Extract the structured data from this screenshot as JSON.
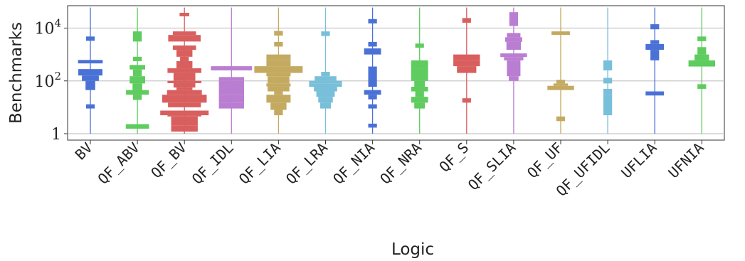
{
  "chart_data": {
    "type": "bar",
    "subtype": "histogram-violin (log-binned distribution per category)",
    "xlabel": "Logic",
    "ylabel": "Benchmarks",
    "yscale": "log",
    "ylim": [
      0.8,
      60000
    ],
    "yticks": [
      {
        "value": 1,
        "base": "1",
        "exp": ""
      },
      {
        "value": 100,
        "base": "10",
        "exp": "2"
      },
      {
        "value": 10000,
        "base": "10",
        "exp": "4"
      }
    ],
    "grid": "horizontal",
    "legend": "none",
    "categories": [
      "BV",
      "QF_ABV",
      "QF_BV",
      "QF_IDL",
      "QF_LIA",
      "QF_LRA",
      "QF_NIA",
      "QF_NRA",
      "QF_S",
      "QF_SLIA",
      "QF_UF",
      "QF_UFIDL",
      "UFLIA",
      "UFNIA"
    ],
    "series": [
      {
        "category": "BV",
        "color": "#4a72d6",
        "range": [
          1,
          60000
        ],
        "bins": [
          [
            3300,
            4800,
            0.18
          ],
          [
            460,
            620,
            0.51
          ],
          [
            160,
            280,
            0.5
          ],
          [
            100,
            160,
            0.35
          ],
          [
            45,
            100,
            0.2
          ],
          [
            9,
            13,
            0.18
          ]
        ]
      },
      {
        "category": "QF_ABV",
        "color": "#5ecc5e",
        "range": [
          1,
          60000
        ],
        "bins": [
          [
            4600,
            7500,
            0.18
          ],
          [
            3100,
            4600,
            0.18
          ],
          [
            560,
            820,
            0.18
          ],
          [
            270,
            400,
            0.32
          ],
          [
            150,
            270,
            0.18
          ],
          [
            80,
            150,
            0.32
          ],
          [
            45,
            80,
            0.2
          ],
          [
            30,
            45,
            0.47
          ],
          [
            19,
            30,
            0.18
          ],
          [
            1.55,
            2.3,
            0.48
          ]
        ]
      },
      {
        "category": "QF_BV",
        "color": "#d95f5f",
        "range": [
          1,
          60000
        ],
        "bins": [
          [
            28000,
            38000,
            0.2
          ],
          [
            5500,
            7500,
            0.48
          ],
          [
            3100,
            5500,
            0.67
          ],
          [
            1500,
            2200,
            0.48
          ],
          [
            820,
            1500,
            0.33
          ],
          [
            560,
            820,
            0.18
          ],
          [
            300,
            560,
            0.33
          ],
          [
            200,
            300,
            0.7
          ],
          [
            100,
            200,
            0.45
          ],
          [
            82,
            100,
            0.7
          ],
          [
            56,
            82,
            0.45
          ],
          [
            45,
            56,
            0.33
          ],
          [
            30,
            45,
            0.72
          ],
          [
            15,
            30,
            0.92
          ],
          [
            10,
            15,
            0.68
          ],
          [
            5,
            7.5,
            1.0
          ],
          [
            4.5,
            5,
            0.7
          ],
          [
            2,
            4.5,
            0.55
          ],
          [
            1.2,
            2,
            0.55
          ]
        ]
      },
      {
        "category": "QF_IDL",
        "color": "#b97ed1",
        "range": [
          1,
          60000
        ],
        "bins": [
          [
            250,
            360,
            0.85
          ],
          [
            100,
            140,
            0.52
          ],
          [
            30,
            100,
            0.52
          ],
          [
            15,
            30,
            0.52
          ],
          [
            9,
            15,
            0.52
          ]
        ]
      },
      {
        "category": "QF_LIA",
        "color": "#c4aa61",
        "range": [
          1,
          60000
        ],
        "bins": [
          [
            5200,
            7800,
            0.18
          ],
          [
            2000,
            3000,
            0.18
          ],
          [
            600,
            1000,
            0.5
          ],
          [
            360,
            600,
            0.5
          ],
          [
            200,
            360,
            1.0
          ],
          [
            150,
            200,
            0.5
          ],
          [
            80,
            150,
            0.45
          ],
          [
            62,
            80,
            0.5
          ],
          [
            40,
            62,
            0.45
          ],
          [
            30,
            40,
            0.18
          ],
          [
            15,
            30,
            0.5
          ],
          [
            8,
            15,
            0.33
          ],
          [
            5,
            8,
            0.18
          ]
        ]
      },
      {
        "category": "QF_LRA",
        "color": "#78bfd9",
        "range": [
          1,
          60000
        ],
        "bins": [
          [
            5000,
            7500,
            0.18
          ],
          [
            150,
            220,
            0.18
          ],
          [
            100,
            150,
            0.45
          ],
          [
            80,
            100,
            0.68
          ],
          [
            60,
            80,
            0.68
          ],
          [
            40,
            60,
            0.48
          ],
          [
            25,
            40,
            0.38
          ],
          [
            15,
            25,
            0.3
          ],
          [
            9,
            15,
            0.22
          ]
        ]
      },
      {
        "category": "QF_NIA",
        "color": "#4a72d6",
        "range": [
          1,
          60000
        ],
        "bins": [
          [
            15000,
            22000,
            0.18
          ],
          [
            2000,
            3000,
            0.18
          ],
          [
            1000,
            1700,
            0.35
          ],
          [
            250,
            350,
            0.18
          ],
          [
            60,
            250,
            0.18
          ],
          [
            30,
            45,
            0.35
          ],
          [
            20,
            30,
            0.18
          ],
          [
            9,
            13,
            0.18
          ],
          [
            1.7,
            2.4,
            0.18
          ]
        ]
      },
      {
        "category": "QF_NRA",
        "color": "#5ecc5e",
        "range": [
          1,
          60000
        ],
        "bins": [
          [
            1800,
            2600,
            0.18
          ],
          [
            300,
            600,
            0.35
          ],
          [
            100,
            300,
            0.35
          ],
          [
            60,
            100,
            0.22
          ],
          [
            40,
            60,
            0.35
          ],
          [
            25,
            40,
            0.18
          ],
          [
            15,
            25,
            0.35
          ],
          [
            9,
            15,
            0.22
          ]
        ]
      },
      {
        "category": "QF_S",
        "color": "#d95f5f",
        "range": [
          1,
          60000
        ],
        "bins": [
          [
            16000,
            24000,
            0.18
          ],
          [
            600,
            1000,
            0.55
          ],
          [
            360,
            600,
            0.55
          ],
          [
            200,
            360,
            0.4
          ],
          [
            15,
            22,
            0.18
          ]
        ]
      },
      {
        "category": "QF_SLIA",
        "color": "#b97ed1",
        "range": [
          1,
          60000
        ],
        "bins": [
          [
            12000,
            40000,
            0.18
          ],
          [
            4500,
            6500,
            0.28
          ],
          [
            3000,
            4500,
            0.35
          ],
          [
            1500,
            3000,
            0.3
          ],
          [
            800,
            1100,
            0.55
          ],
          [
            600,
            800,
            0.4
          ],
          [
            150,
            600,
            0.28
          ],
          [
            100,
            150,
            0.2
          ]
        ]
      },
      {
        "category": "QF_UF",
        "color": "#c4aa61",
        "range": [
          1,
          60000
        ],
        "bins": [
          [
            5500,
            7500,
            0.38
          ],
          [
            80,
            110,
            0.18
          ],
          [
            65,
            80,
            0.3
          ],
          [
            45,
            65,
            0.55
          ],
          [
            3,
            4.5,
            0.18
          ]
        ]
      },
      {
        "category": "QF_UFIDL",
        "color": "#78bfd9",
        "range": [
          1,
          60000
        ],
        "bins": [
          [
            250,
            600,
            0.18
          ],
          [
            80,
            130,
            0.18
          ],
          [
            30,
            50,
            0.18
          ],
          [
            5,
            30,
            0.18
          ]
        ]
      },
      {
        "category": "UFLIA",
        "color": "#4a72d6",
        "range": [
          1,
          60000
        ],
        "bins": [
          [
            9000,
            14000,
            0.18
          ],
          [
            2500,
            3500,
            0.18
          ],
          [
            1500,
            2500,
            0.38
          ],
          [
            600,
            1500,
            0.18
          ],
          [
            28,
            40,
            0.38
          ]
        ]
      },
      {
        "category": "UFNIA",
        "color": "#5ecc5e",
        "range": [
          1,
          60000
        ],
        "bins": [
          [
            3200,
            4800,
            0.18
          ],
          [
            1000,
            1900,
            0.18
          ],
          [
            600,
            1000,
            0.3
          ],
          [
            350,
            600,
            0.55
          ],
          [
            50,
            75,
            0.18
          ]
        ]
      }
    ]
  }
}
